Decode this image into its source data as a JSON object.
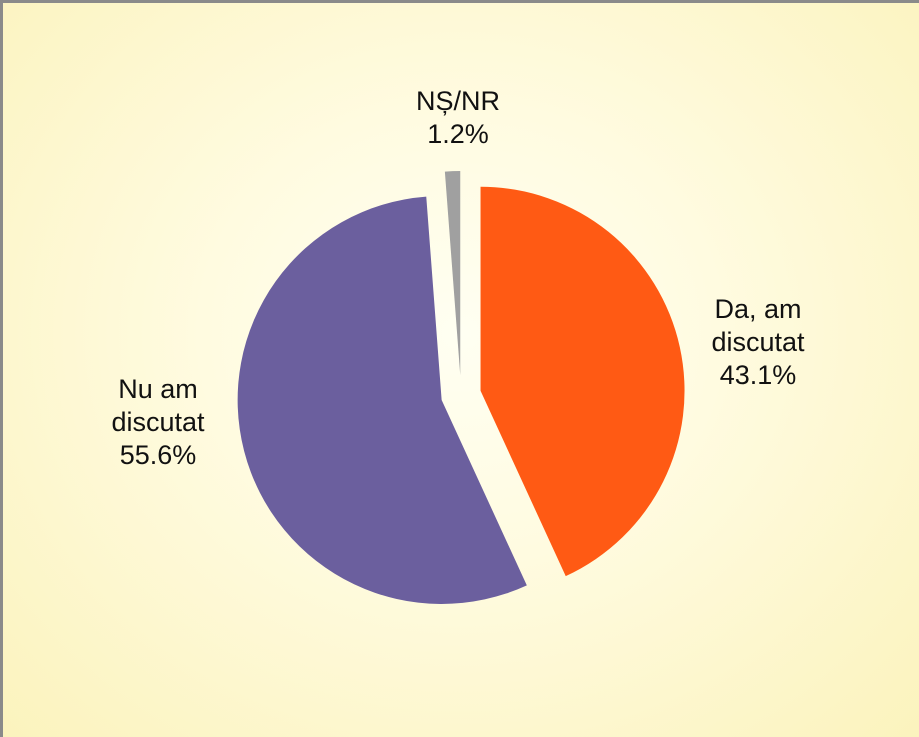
{
  "chart_data": {
    "type": "pie",
    "categories": [
      "Da, am discutat",
      "Nu am discutat",
      "NȘ/NR"
    ],
    "values": [
      43.1,
      55.6,
      1.2
    ],
    "value_labels": [
      "43.1%",
      "55.6%",
      "1.2%"
    ],
    "colors": [
      "#ff5a14",
      "#6b5f9e",
      "#a0a0a0"
    ]
  }
}
